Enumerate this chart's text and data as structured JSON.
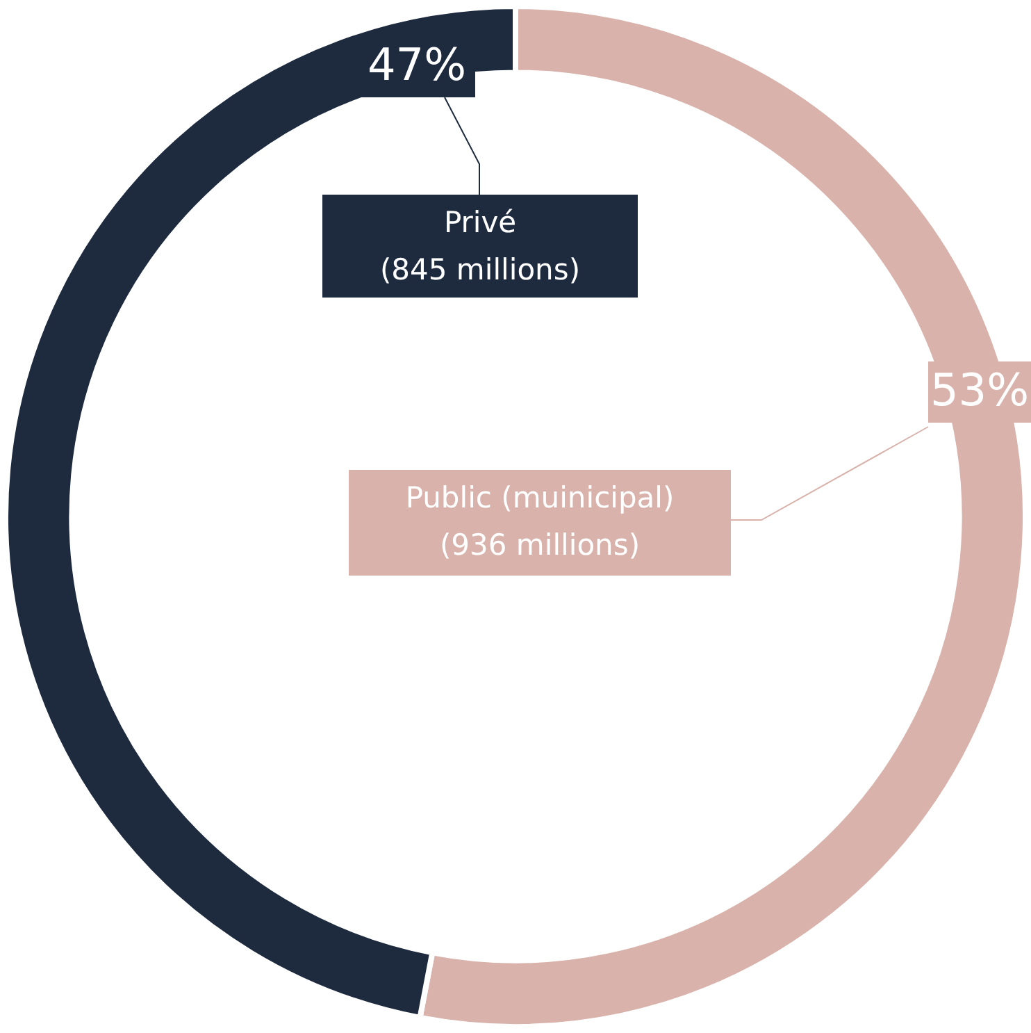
{
  "chart_data": {
    "type": "donut",
    "categories": [
      "Public (muinicipal)",
      "Privé"
    ],
    "values": [
      53,
      47
    ],
    "colors": [
      "#d8b2ab",
      "#1e2b3f"
    ],
    "value_labels": [
      "53%",
      "47%"
    ],
    "annotations": [
      "(936 millions)",
      "(845 millions)"
    ],
    "legend": false
  }
}
